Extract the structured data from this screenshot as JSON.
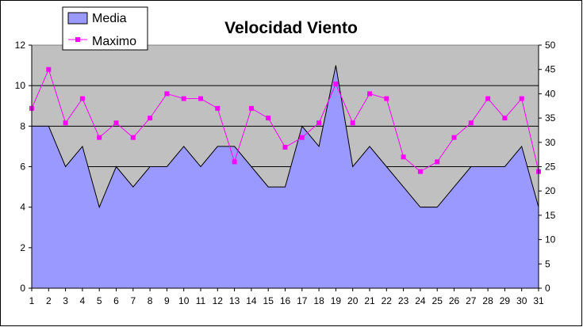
{
  "chart_data": {
    "type": "area+line",
    "title": "Velocidad Viento",
    "categories": [
      "1",
      "2",
      "3",
      "4",
      "5",
      "6",
      "7",
      "8",
      "9",
      "10",
      "11",
      "12",
      "13",
      "14",
      "15",
      "16",
      "17",
      "18",
      "19",
      "20",
      "21",
      "22",
      "23",
      "24",
      "25",
      "26",
      "27",
      "28",
      "29",
      "30",
      "31"
    ],
    "series": [
      {
        "name": "Media",
        "type": "area",
        "axis": "left",
        "color": "#9999ff",
        "values": [
          8,
          8,
          6,
          7,
          4,
          6,
          5,
          6,
          6,
          7,
          6,
          7,
          7,
          6,
          5,
          5,
          8,
          7,
          11,
          6,
          7,
          6,
          5,
          4,
          4,
          5,
          6,
          6,
          6,
          7,
          4
        ]
      },
      {
        "name": "Maximo",
        "type": "line",
        "axis": "right",
        "color": "#ff00ff",
        "values": [
          37,
          45,
          34,
          39,
          31,
          34,
          31,
          35,
          40,
          39,
          39,
          37,
          26,
          37,
          35,
          29,
          31,
          34,
          42,
          34,
          40,
          39,
          27,
          24,
          26,
          31,
          34,
          39,
          35,
          39,
          24
        ]
      }
    ],
    "y_left": {
      "min": 0,
      "max": 12,
      "ticks": [
        0,
        2,
        4,
        6,
        8,
        10,
        12
      ]
    },
    "y_right": {
      "min": 0,
      "max": 50,
      "ticks": [
        0,
        5,
        10,
        15,
        20,
        25,
        30,
        35,
        40,
        45,
        50
      ]
    },
    "gridlines": [
      0,
      2,
      4,
      6,
      8,
      10,
      12
    ],
    "plot_background": "#c0c0c0",
    "legend_position": "top-left"
  }
}
